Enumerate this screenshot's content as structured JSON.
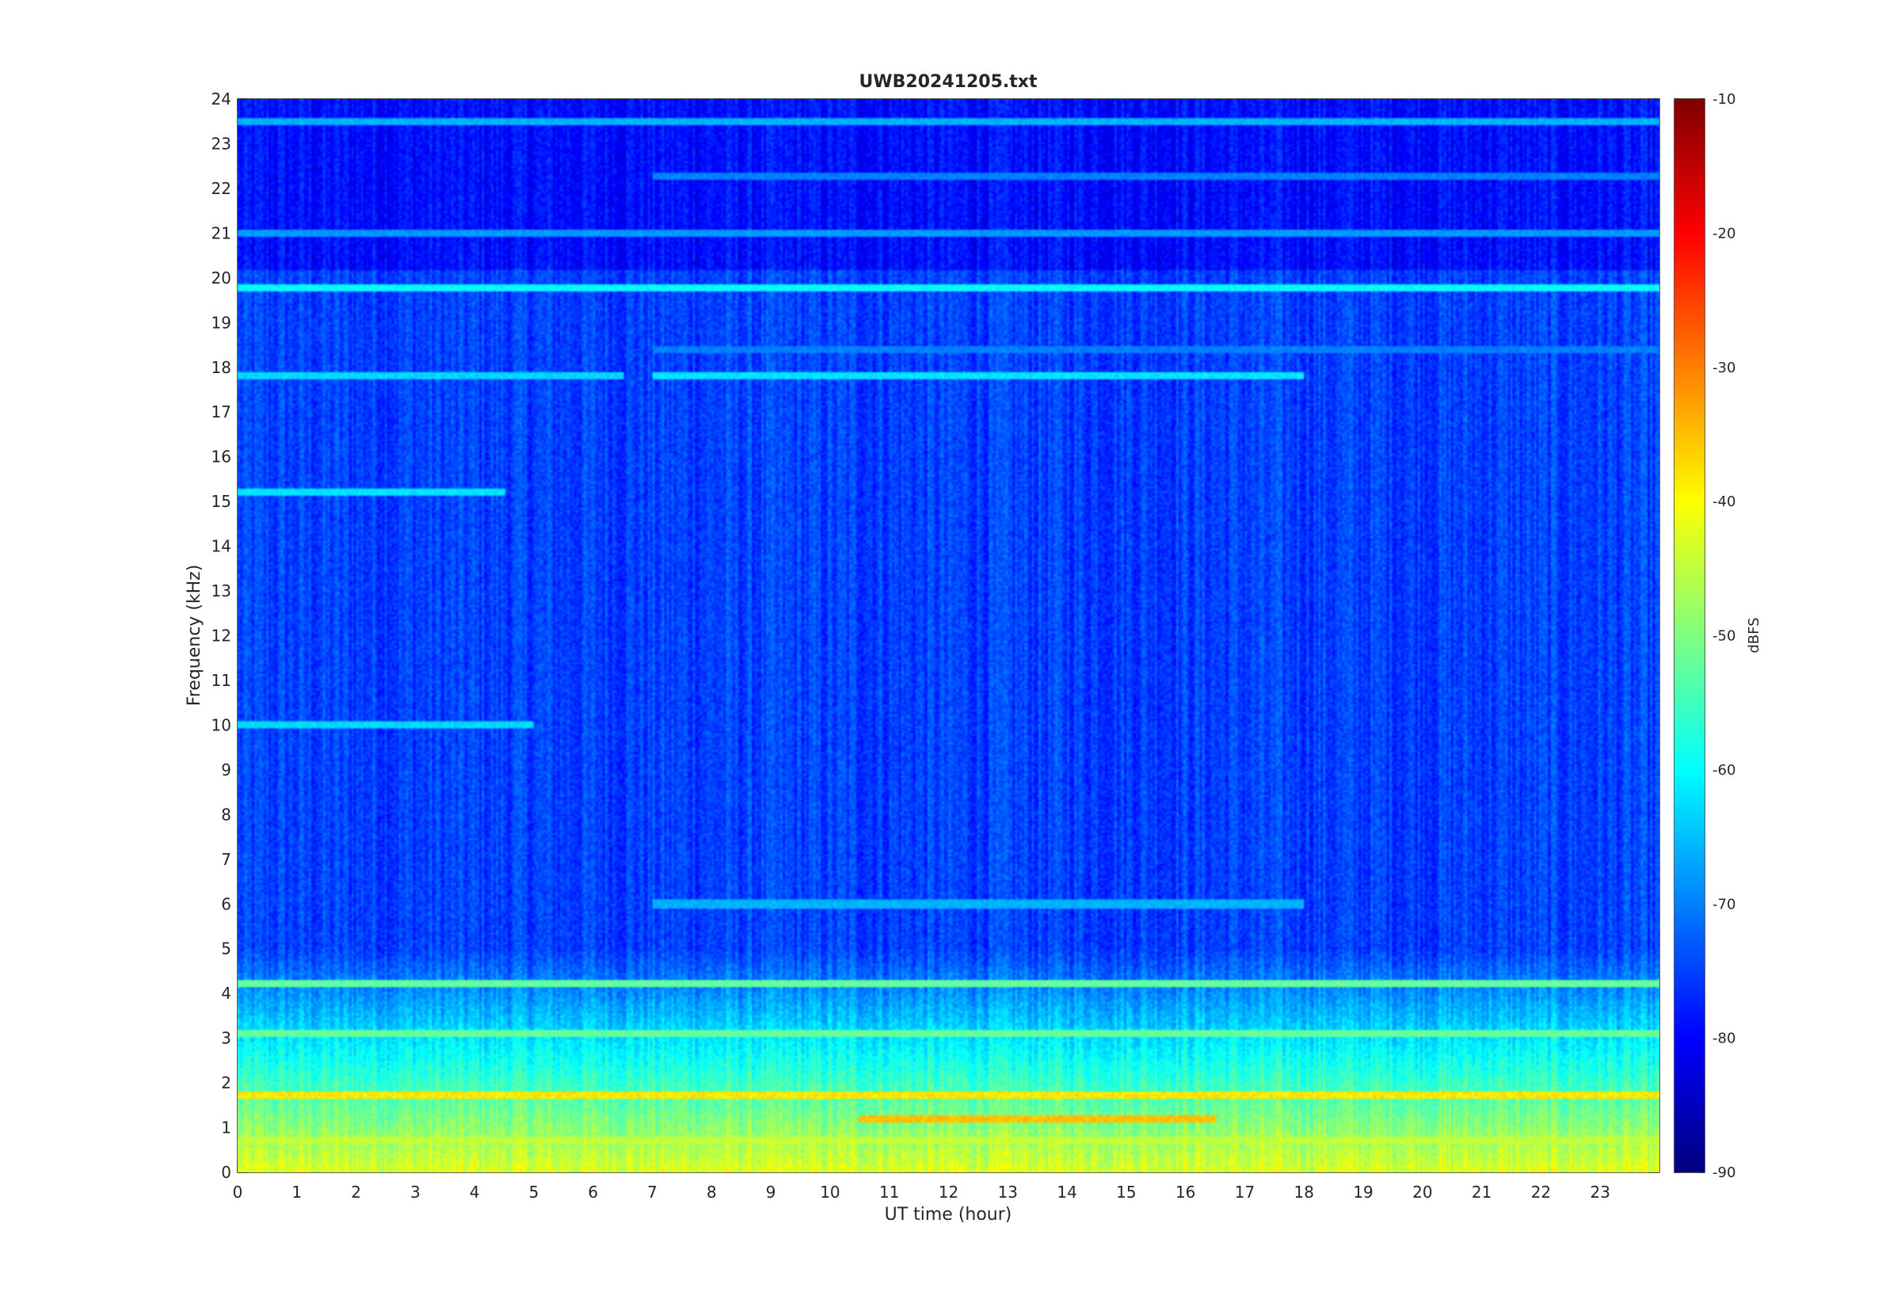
{
  "chart_data": {
    "type": "heatmap",
    "title": "UWB20241205.txt",
    "xlabel": "UT time (hour)",
    "ylabel": "Frequency (kHz)",
    "xlim": [
      0,
      24
    ],
    "ylim": [
      0,
      24
    ],
    "xticks": [
      "0",
      "1",
      "2",
      "3",
      "4",
      "5",
      "6",
      "7",
      "8",
      "9",
      "10",
      "11",
      "12",
      "13",
      "14",
      "15",
      "16",
      "17",
      "18",
      "19",
      "20",
      "21",
      "22",
      "23"
    ],
    "yticks": [
      "0",
      "1",
      "2",
      "3",
      "4",
      "5",
      "6",
      "7",
      "8",
      "9",
      "10",
      "11",
      "12",
      "13",
      "14",
      "15",
      "16",
      "17",
      "18",
      "19",
      "20",
      "21",
      "22",
      "23",
      "24"
    ],
    "colorbar": {
      "label": "dBFS",
      "range": [
        -90,
        -10
      ],
      "ticks": [
        "-10",
        "-20",
        "-30",
        "-40",
        "-50",
        "-60",
        "-70",
        "-80",
        "-90"
      ],
      "colormap": "jet"
    },
    "background_level_dbfs": -75,
    "bands": [
      {
        "freq_khz": 19.8,
        "level_dbfs": -60,
        "hours": [
          0,
          24
        ]
      },
      {
        "freq_khz": 17.8,
        "level_dbfs": -63,
        "hours": [
          0,
          6.5
        ]
      },
      {
        "freq_khz": 17.8,
        "level_dbfs": -62,
        "hours": [
          7,
          18
        ]
      },
      {
        "freq_khz": 23.5,
        "level_dbfs": -66,
        "hours": [
          0,
          24
        ]
      },
      {
        "freq_khz": 22.3,
        "level_dbfs": -70,
        "hours": [
          7,
          24
        ]
      },
      {
        "freq_khz": 21.0,
        "level_dbfs": -68,
        "hours": [
          0,
          24
        ]
      },
      {
        "freq_khz": 18.4,
        "level_dbfs": -70,
        "hours": [
          7,
          24
        ]
      },
      {
        "freq_khz": 15.2,
        "level_dbfs": -62,
        "hours": [
          0,
          4.5
        ]
      },
      {
        "freq_khz": 10.0,
        "level_dbfs": -63,
        "hours": [
          0,
          5
        ]
      },
      {
        "freq_khz": 6.0,
        "level_dbfs": -66,
        "hours": [
          7,
          18
        ]
      },
      {
        "freq_khz": 4.2,
        "level_dbfs": -52,
        "hours": [
          0,
          24
        ]
      },
      {
        "freq_khz": 3.1,
        "level_dbfs": -52,
        "hours": [
          0,
          24
        ]
      },
      {
        "freq_khz": 1.7,
        "level_dbfs": -38,
        "hours": [
          0,
          24
        ]
      },
      {
        "freq_khz": 1.2,
        "level_dbfs": -35,
        "hours": [
          10.5,
          16.5
        ]
      },
      {
        "freq_khz": 0.7,
        "level_dbfs": -45,
        "hours": [
          0,
          24
        ]
      }
    ]
  }
}
